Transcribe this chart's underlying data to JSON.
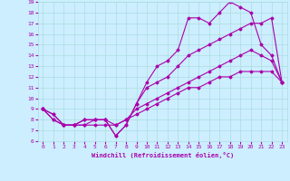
{
  "xlabel": "Windchill (Refroidissement éolien,°C)",
  "xlim": [
    -0.5,
    23.5
  ],
  "ylim": [
    6,
    19
  ],
  "xticks": [
    0,
    1,
    2,
    3,
    4,
    5,
    6,
    7,
    8,
    9,
    10,
    11,
    12,
    13,
    14,
    15,
    16,
    17,
    18,
    19,
    20,
    21,
    22,
    23
  ],
  "yticks": [
    6,
    7,
    8,
    9,
    10,
    11,
    12,
    13,
    14,
    15,
    16,
    17,
    18,
    19
  ],
  "bg_color": "#cceeff",
  "grid_color": "#aadddd",
  "line_color": "#aa00aa",
  "lines": [
    {
      "x": [
        0,
        1,
        2,
        3,
        4,
        5,
        6,
        7,
        8,
        9,
        10,
        11,
        12,
        13,
        14,
        15,
        16,
        17,
        18,
        19,
        20,
        21,
        22,
        23
      ],
      "y": [
        9.0,
        8.5,
        7.5,
        7.5,
        8.0,
        8.0,
        8.0,
        6.5,
        7.5,
        9.5,
        11.5,
        13.0,
        13.5,
        14.5,
        17.5,
        17.5,
        17.0,
        18.0,
        19.0,
        18.5,
        18.0,
        15.0,
        14.0,
        11.5
      ]
    },
    {
      "x": [
        0,
        1,
        2,
        3,
        4,
        5,
        6,
        7,
        8,
        9,
        10,
        11,
        12,
        13,
        14,
        15,
        16,
        17,
        18,
        19,
        20,
        21,
        22,
        23
      ],
      "y": [
        9.0,
        8.5,
        7.5,
        7.5,
        8.0,
        8.0,
        8.0,
        6.5,
        7.5,
        9.5,
        11.0,
        11.5,
        12.0,
        13.0,
        14.0,
        14.5,
        15.0,
        15.5,
        16.0,
        16.5,
        17.0,
        17.0,
        17.5,
        11.5
      ]
    },
    {
      "x": [
        0,
        1,
        2,
        3,
        4,
        5,
        6,
        7,
        8,
        9,
        10,
        11,
        12,
        13,
        14,
        15,
        16,
        17,
        18,
        19,
        20,
        21,
        22,
        23
      ],
      "y": [
        9.0,
        8.0,
        7.5,
        7.5,
        7.5,
        8.0,
        8.0,
        7.5,
        8.0,
        9.0,
        9.5,
        10.0,
        10.5,
        11.0,
        11.5,
        12.0,
        12.5,
        13.0,
        13.5,
        14.0,
        14.5,
        14.0,
        13.5,
        11.5
      ]
    },
    {
      "x": [
        0,
        1,
        2,
        3,
        4,
        5,
        6,
        7,
        8,
        9,
        10,
        11,
        12,
        13,
        14,
        15,
        16,
        17,
        18,
        19,
        20,
        21,
        22,
        23
      ],
      "y": [
        9.0,
        8.0,
        7.5,
        7.5,
        7.5,
        7.5,
        7.5,
        7.5,
        8.0,
        8.5,
        9.0,
        9.5,
        10.0,
        10.5,
        11.0,
        11.0,
        11.5,
        12.0,
        12.0,
        12.5,
        12.5,
        12.5,
        12.5,
        11.5
      ]
    }
  ]
}
